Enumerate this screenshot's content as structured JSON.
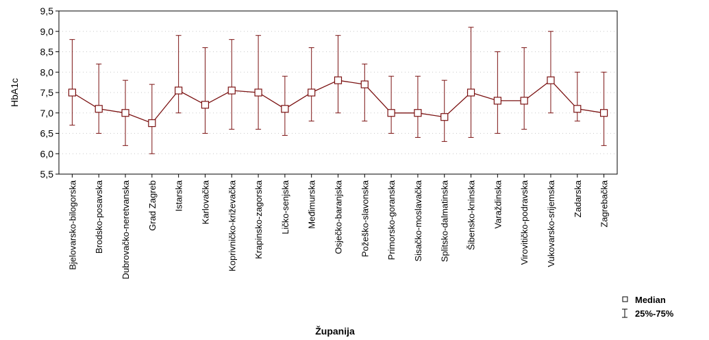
{
  "chart_data": {
    "type": "line",
    "title": "",
    "xlabel": "Županija",
    "ylabel": "HbA1c",
    "ylim": [
      5.5,
      9.5
    ],
    "yticks": [
      "5,5",
      "6,0",
      "6,5",
      "7,0",
      "7,5",
      "8,0",
      "8,5",
      "9,0",
      "9,5"
    ],
    "grid": true,
    "legend_position": "bottom-right",
    "legend": {
      "median_label": "Median",
      "range_label": "25%-75%"
    },
    "categories": [
      "Bjelovarsko-bilogorska",
      "Brodsko-posavska",
      "Dubrovačko-neretvanska",
      "Grad Zagreb",
      "Istarska",
      "Karlovačka",
      "Koprivničko-križevačka",
      "Krapinsko-zagorska",
      "Ličko-senjska",
      "Međimurska",
      "Osječko-baranjska",
      "Požeško-slavonska",
      "Primorsko-goranska",
      "Sisačko-moslavačka",
      "Splitsko-dalmatinska",
      "Šibensko-kninska",
      "Varaždinska",
      "Virovitičko-podravska",
      "Vukovarsko-srijemska",
      "Zadarska",
      "Zagrebačka"
    ],
    "median": [
      7.5,
      7.1,
      7.0,
      6.75,
      7.55,
      7.2,
      7.55,
      7.5,
      7.1,
      7.5,
      7.8,
      7.7,
      7.0,
      7.0,
      6.9,
      7.5,
      7.3,
      7.3,
      7.8,
      7.1,
      7.0
    ],
    "q25": [
      6.7,
      6.5,
      6.2,
      6.0,
      7.0,
      6.5,
      6.6,
      6.6,
      6.45,
      6.8,
      7.0,
      6.8,
      6.5,
      6.4,
      6.3,
      6.4,
      6.5,
      6.6,
      7.0,
      6.8,
      6.2
    ],
    "q75": [
      8.8,
      8.2,
      7.8,
      7.7,
      8.9,
      8.6,
      8.8,
      8.9,
      7.9,
      8.6,
      8.9,
      8.2,
      7.9,
      7.9,
      7.8,
      9.1,
      8.5,
      8.6,
      9.0,
      8.0,
      8.0
    ]
  },
  "colors": {
    "line": "#7a1010",
    "grid": "#c8c8c8",
    "axis": "#000000"
  }
}
